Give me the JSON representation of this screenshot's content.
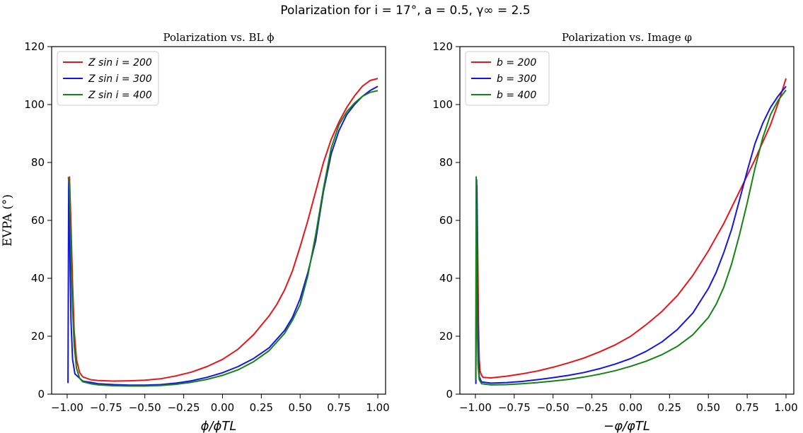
{
  "figure_title": "Polarization for i = 17°, a = 0.5, γ∞ = 2.5",
  "colors": {
    "red": "#e8141c",
    "blue": "#1414e6",
    "green": "#148214"
  },
  "chart_data": [
    {
      "type": "line",
      "title": "Polarization vs. BL ϕ",
      "xlabel": "ϕ/ϕTL",
      "ylabel": "EVPA (°)",
      "xlim": [
        -1.1,
        1.05
      ],
      "ylim": [
        0,
        120
      ],
      "xticks": [
        -1.0,
        -0.75,
        -0.5,
        -0.25,
        0.0,
        0.25,
        0.5,
        0.75,
        1.0
      ],
      "xtick_labels": [
        "−1.00",
        "−0.75",
        "−0.50",
        "−0.25",
        "0.00",
        "0.25",
        "0.50",
        "0.75",
        "1.00"
      ],
      "yticks": [
        0,
        20,
        40,
        60,
        80,
        100,
        120
      ],
      "ytick_labels": [
        "0",
        "20",
        "40",
        "60",
        "80",
        "100",
        "120"
      ],
      "legend": {
        "location": "top-left"
      },
      "series": [
        {
          "name": "Z sin i = 200",
          "color": "red",
          "x": [
            -0.99,
            -0.985,
            -0.975,
            -0.965,
            -0.955,
            -0.94,
            -0.92,
            -0.9,
            -0.85,
            -0.8,
            -0.7,
            -0.6,
            -0.5,
            -0.4,
            -0.3,
            -0.2,
            -0.1,
            0.0,
            0.1,
            0.2,
            0.3,
            0.35,
            0.4,
            0.45,
            0.5,
            0.55,
            0.6,
            0.65,
            0.7,
            0.75,
            0.8,
            0.85,
            0.9,
            0.95,
            1.0
          ],
          "y": [
            62,
            75,
            58,
            38,
            22,
            12,
            7.5,
            6,
            5,
            4.7,
            4.5,
            4.6,
            4.8,
            5.3,
            6.3,
            7.6,
            9.5,
            12,
            15.5,
            20.5,
            27,
            31,
            36,
            42.5,
            51,
            60,
            70,
            80,
            88,
            94,
            99,
            103,
            106.3,
            108.3,
            109
          ]
        },
        {
          "name": "Z sin i = 300",
          "color": "blue",
          "x": [
            -0.995,
            -0.99,
            -0.985,
            -0.98,
            -0.975,
            -0.965,
            -0.95,
            -0.9,
            -0.8,
            -0.7,
            -0.6,
            -0.5,
            -0.4,
            -0.3,
            -0.2,
            -0.1,
            0.0,
            0.1,
            0.2,
            0.3,
            0.4,
            0.45,
            0.5,
            0.55,
            0.6,
            0.62,
            0.65,
            0.7,
            0.75,
            0.8,
            0.85,
            0.9,
            0.95,
            1.0
          ],
          "y": [
            3.8,
            74,
            60,
            40,
            25,
            12,
            7,
            4.5,
            3.6,
            3.3,
            3.1,
            3.1,
            3.3,
            3.8,
            4.6,
            5.8,
            7.4,
            9.5,
            12.3,
            16,
            22,
            26.5,
            33,
            42,
            53,
            60,
            70,
            83,
            91,
            96.5,
            100,
            102.8,
            104.8,
            106.3
          ]
        },
        {
          "name": "Z sin i = 400",
          "color": "green",
          "x": [
            -0.993,
            -0.987,
            -0.98,
            -0.975,
            -0.965,
            -0.955,
            -0.94,
            -0.92,
            -0.9,
            -0.85,
            -0.8,
            -0.7,
            -0.6,
            -0.5,
            -0.4,
            -0.3,
            -0.2,
            -0.1,
            0.0,
            0.1,
            0.2,
            0.3,
            0.4,
            0.45,
            0.5,
            0.55,
            0.6,
            0.65,
            0.7,
            0.75,
            0.8,
            0.85,
            0.9,
            0.95,
            1.0
          ],
          "y": [
            75,
            73,
            60,
            48,
            30,
            17,
            9,
            5.5,
            4.3,
            3.6,
            3.2,
            2.9,
            2.8,
            2.8,
            3.0,
            3.4,
            4.1,
            5.1,
            6.5,
            8.4,
            11.2,
            15,
            21,
            25.5,
            31,
            41,
            55,
            71,
            85,
            93,
            97.5,
            100.5,
            102.8,
            104.2,
            104.8
          ]
        }
      ]
    },
    {
      "type": "line",
      "title": "Polarization vs. Image φ",
      "xlabel": "−φ/φTL",
      "ylabel": "",
      "xlim": [
        -1.1,
        1.05
      ],
      "ylim": [
        0,
        120
      ],
      "xticks": [
        -1.0,
        -0.75,
        -0.5,
        -0.25,
        0.0,
        0.25,
        0.5,
        0.75,
        1.0
      ],
      "xtick_labels": [
        "−1.00",
        "−0.75",
        "−0.50",
        "−0.25",
        "0.00",
        "0.25",
        "0.50",
        "0.75",
        "1.00"
      ],
      "yticks": [
        0,
        20,
        40,
        60,
        80,
        100,
        120
      ],
      "ytick_labels": [
        "0",
        "20",
        "40",
        "60",
        "80",
        "100",
        "120"
      ],
      "legend": {
        "location": "top-left"
      },
      "series": [
        {
          "name": "b = 200",
          "color": "red",
          "x": [
            -0.995,
            -0.99,
            -0.985,
            -0.98,
            -0.975,
            -0.97,
            -0.96,
            -0.95,
            -0.9,
            -0.8,
            -0.7,
            -0.6,
            -0.5,
            -0.4,
            -0.3,
            -0.2,
            -0.1,
            0.0,
            0.1,
            0.2,
            0.3,
            0.4,
            0.5,
            0.6,
            0.7,
            0.8,
            0.9,
            0.95,
            1.0
          ],
          "y": [
            60,
            72,
            50,
            25,
            12,
            8,
            6.5,
            5.8,
            5.6,
            6.2,
            7,
            8,
            9.3,
            10.8,
            12.5,
            14.6,
            17,
            20,
            24,
            28.5,
            34,
            41,
            49.5,
            59,
            70,
            81,
            93,
            100.5,
            109
          ]
        },
        {
          "name": "b = 300",
          "color": "blue",
          "x": [
            -0.997,
            -0.992,
            -0.988,
            -0.982,
            -0.975,
            -0.96,
            -0.9,
            -0.8,
            -0.7,
            -0.6,
            -0.5,
            -0.4,
            -0.3,
            -0.2,
            -0.1,
            0.0,
            0.1,
            0.2,
            0.3,
            0.4,
            0.5,
            0.55,
            0.6,
            0.65,
            0.7,
            0.75,
            0.8,
            0.85,
            0.9,
            0.95,
            1.0
          ],
          "y": [
            3.5,
            74,
            45,
            15,
            6,
            4.2,
            3.8,
            4.0,
            4.4,
            5.0,
            5.7,
            6.5,
            7.5,
            8.8,
            10.4,
            12.3,
            14.8,
            18,
            22.3,
            28,
            36.5,
            42,
            49,
            57,
            67,
            77,
            86.5,
            93.5,
            99,
            103,
            106.3
          ]
        },
        {
          "name": "b = 400",
          "color": "green",
          "x": [
            -0.998,
            -0.995,
            -0.992,
            -0.988,
            -0.983,
            -0.975,
            -0.96,
            -0.9,
            -0.8,
            -0.7,
            -0.6,
            -0.5,
            -0.4,
            -0.3,
            -0.2,
            -0.1,
            0.0,
            0.1,
            0.2,
            0.3,
            0.4,
            0.5,
            0.55,
            0.6,
            0.65,
            0.7,
            0.75,
            0.8,
            0.85,
            0.9,
            0.95,
            1.0
          ],
          "y": [
            5,
            75,
            55,
            25,
            10,
            5,
            3.6,
            3.2,
            3.3,
            3.6,
            4.0,
            4.5,
            5.1,
            5.9,
            6.9,
            8.1,
            9.6,
            11.4,
            13.6,
            16.5,
            20.5,
            26.5,
            31,
            37,
            45,
            55,
            66,
            78,
            88.5,
            96.5,
            101.5,
            105
          ]
        }
      ]
    }
  ]
}
